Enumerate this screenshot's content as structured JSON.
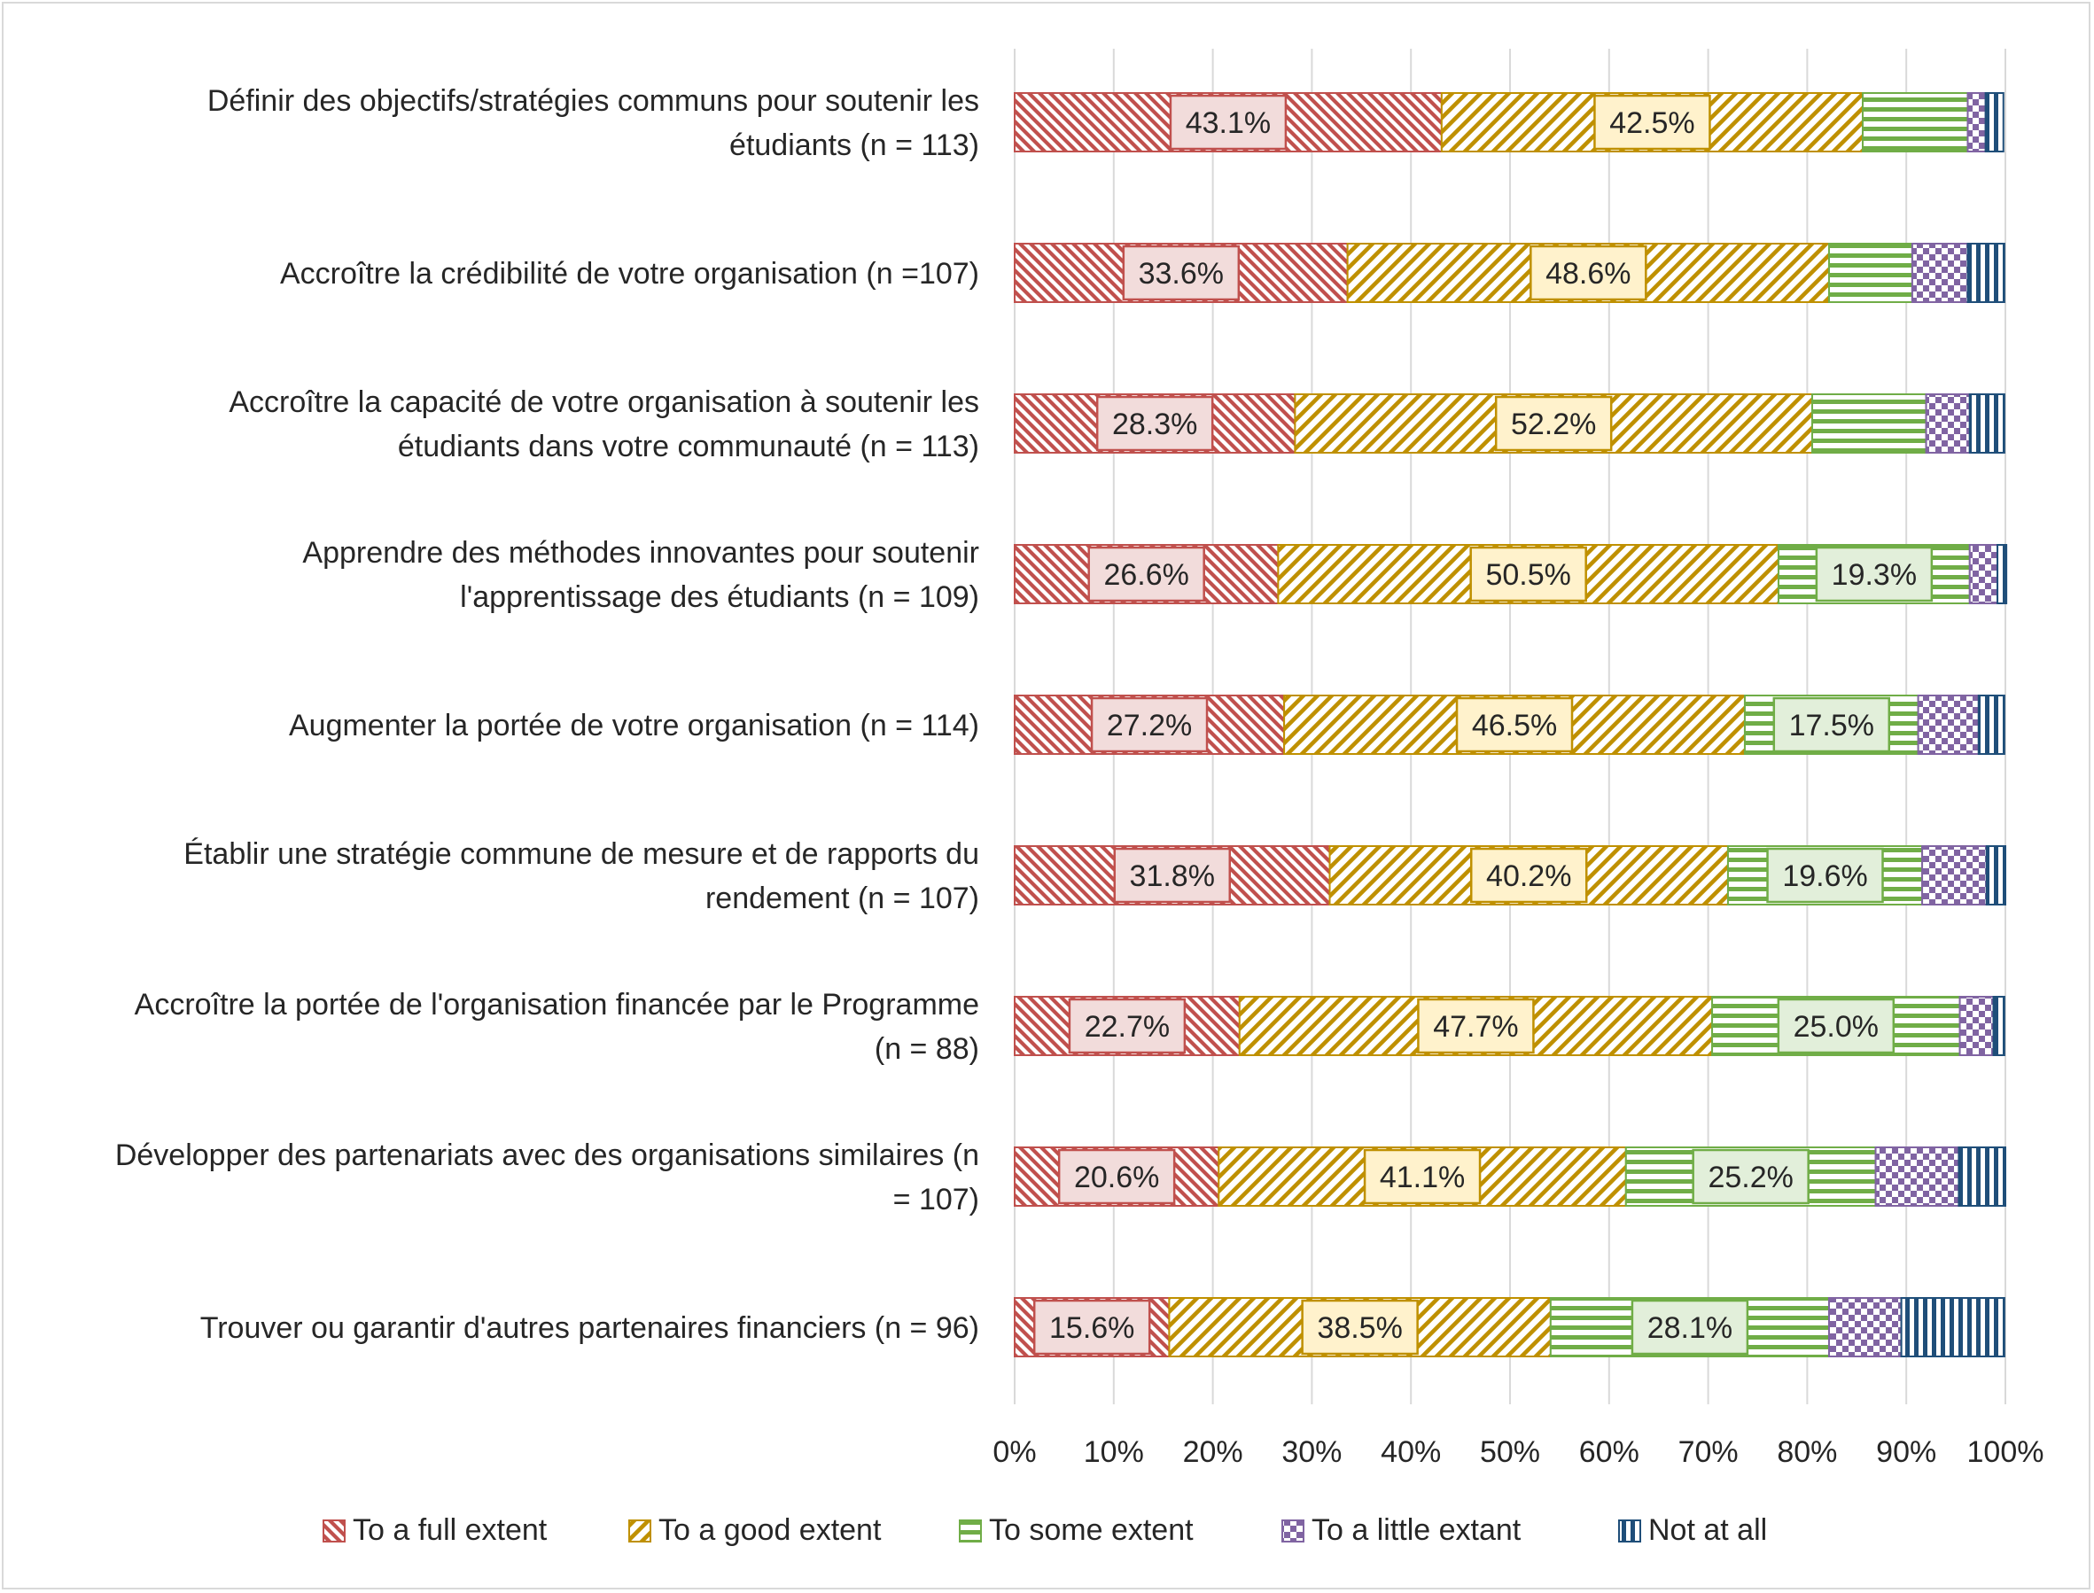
{
  "chart_data": {
    "type": "bar",
    "orientation": "horizontal",
    "stacked": "100%",
    "title": "",
    "xlabel": "",
    "ylabel": "",
    "xlim": [
      0,
      100
    ],
    "x_ticks": [
      "0%",
      "10%",
      "20%",
      "30%",
      "40%",
      "50%",
      "60%",
      "70%",
      "80%",
      "90%",
      "100%"
    ],
    "grid": true,
    "legend_position": "bottom",
    "categories": [
      [
        "Définir des objectifs/stratégies communs pour soutenir les",
        "étudiants  (n = 113)"
      ],
      [
        "Accroître la crédibilité de votre organisation (n =107)"
      ],
      [
        "Accroître la capacité de votre organisation à soutenir les",
        "étudiants dans votre communauté (n = 113)"
      ],
      [
        "Apprendre des méthodes innovantes pour soutenir",
        "l'apprentissage des étudiants (n = 109)"
      ],
      [
        "Augmenter la portée de votre organisation (n = 114)"
      ],
      [
        "Établir une stratégie commune de mesure et de rapports du",
        "rendement (n = 107)"
      ],
      [
        "Accroître la portée de l'organisation financée par le Programme",
        "(n = 88)"
      ],
      [
        "Développer des partenariats avec des organisations similaires (n",
        "= 107)"
      ],
      [
        "Trouver ou garantir d'autres partenaires financiers (n = 96)"
      ]
    ],
    "series": [
      {
        "name": "To a full extent",
        "pattern": "diag-down",
        "color": "#c0504d",
        "label_bg": "#f2dcdb",
        "values": [
          43.1,
          33.6,
          28.3,
          26.6,
          27.2,
          31.8,
          22.7,
          20.6,
          15.6
        ],
        "labels": [
          "43.1%",
          "33.6%",
          "28.3%",
          "26.6%",
          "27.2%",
          "31.8%",
          "22.7%",
          "20.6%",
          "15.6%"
        ]
      },
      {
        "name": "To a good extent",
        "pattern": "diag-up",
        "color": "#bf9000",
        "label_bg": "#fff2cc",
        "values": [
          42.5,
          48.6,
          52.2,
          50.5,
          46.5,
          40.2,
          47.7,
          41.1,
          38.5
        ],
        "labels": [
          "42.5%",
          "48.6%",
          "52.2%",
          "50.5%",
          "46.5%",
          "40.2%",
          "47.7%",
          "41.1%",
          "38.5%"
        ]
      },
      {
        "name": "To some extent",
        "pattern": "horizontal",
        "color": "#70ad47",
        "label_bg": "#e2efda",
        "values": [
          10.6,
          8.4,
          11.5,
          19.3,
          17.5,
          19.6,
          25.0,
          25.2,
          28.1
        ],
        "labels": [
          "",
          "",
          "",
          "19.3%",
          "17.5%",
          "19.6%",
          "25.0%",
          "25.2%",
          "28.1%"
        ]
      },
      {
        "name": "To a little extant",
        "pattern": "checker",
        "color": "#8064a2",
        "label_bg": "#e4dfec",
        "values": [
          1.8,
          5.6,
          4.4,
          2.8,
          6.1,
          6.5,
          3.4,
          8.4,
          7.3
        ],
        "labels": [
          "",
          "",
          "",
          "",
          "",
          "",
          "",
          "",
          ""
        ]
      },
      {
        "name": "Not at all",
        "pattern": "vertical",
        "color": "#1f4e79",
        "label_bg": "#dde6f0",
        "values": [
          1.8,
          3.7,
          3.5,
          0.9,
          2.6,
          1.9,
          1.1,
          4.7,
          10.4
        ],
        "labels": [
          "",
          "",
          "",
          "",
          "",
          "",
          "",
          "",
          ""
        ]
      }
    ]
  }
}
